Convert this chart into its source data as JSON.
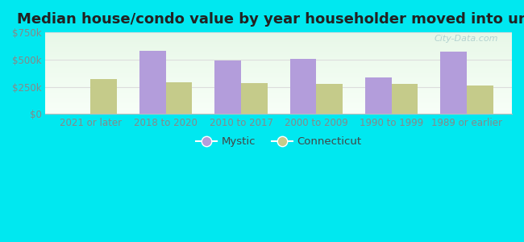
{
  "title": "Median house/condo value by year householder moved into unit",
  "categories": [
    "2021 or later",
    "2018 to 2020",
    "2010 to 2017",
    "2000 to 2009",
    "1990 to 1999",
    "1989 or earlier"
  ],
  "mystic_values": [
    0,
    580000,
    495000,
    505000,
    340000,
    570000
  ],
  "connecticut_values": [
    325000,
    295000,
    285000,
    275000,
    280000,
    260000
  ],
  "mystic_color": "#b39ddb",
  "connecticut_color": "#c5cb8a",
  "background_outer": "#00e8f0",
  "background_plot_top": "#e8f8e8",
  "background_plot_bottom": "#f8fff8",
  "ylim": [
    0,
    750000
  ],
  "yticks": [
    0,
    250000,
    500000,
    750000
  ],
  "ytick_labels": [
    "$0",
    "$250k",
    "$500k",
    "$750k"
  ],
  "axis_label_color": "#888888",
  "grid_color": "#dddddd",
  "bar_width": 0.35,
  "legend_mystic": "Mystic",
  "legend_connecticut": "Connecticut",
  "title_fontsize": 13,
  "tick_fontsize": 8.5,
  "legend_fontsize": 9.5,
  "watermark": "City-Data.com",
  "watermark_color": "#aacccc",
  "bottom_spine_color": "#bbbbbb"
}
